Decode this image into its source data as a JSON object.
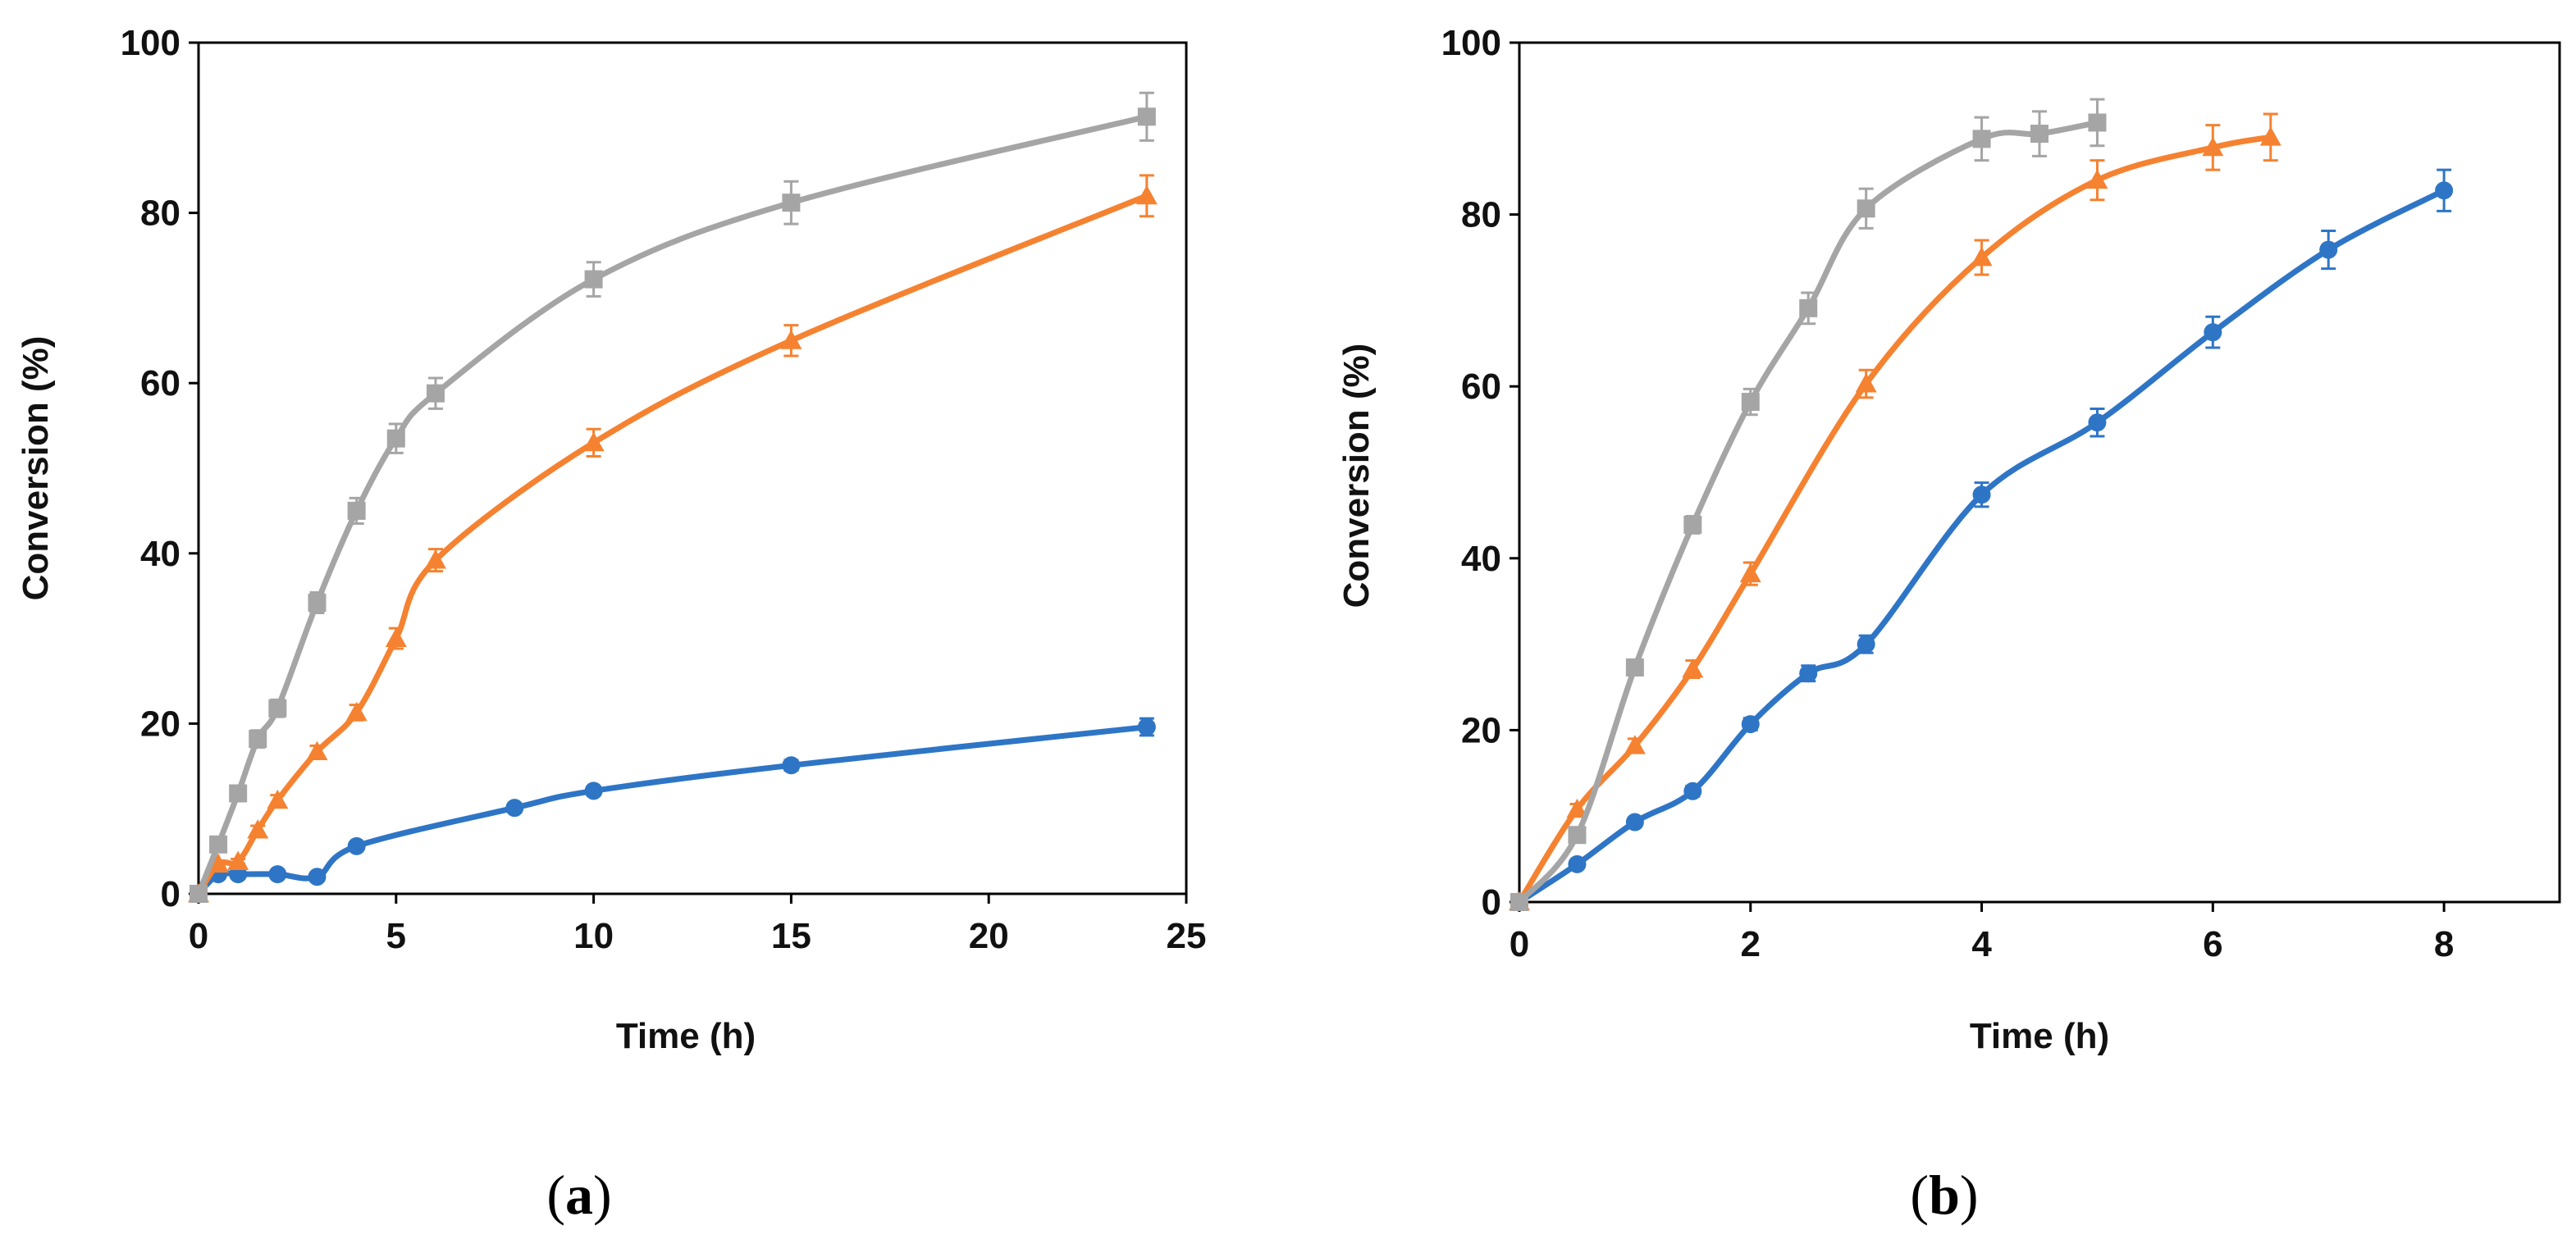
{
  "chart_data": [
    {
      "type": "line",
      "panel": "a",
      "caption": {
        "open": "(",
        "letter": "a",
        "close": ")"
      },
      "xlabel": "Time (h)",
      "ylabel": "Conversion (%)",
      "xlim": [
        0,
        25
      ],
      "ylim": [
        0,
        100
      ],
      "xticks": [
        0,
        5,
        10,
        15,
        20,
        25
      ],
      "yticks": [
        0,
        20,
        40,
        60,
        80,
        100
      ],
      "grid": false,
      "series": [
        {
          "name": "circle-series",
          "color": "#2E75C6",
          "marker": "circle",
          "x": [
            0,
            0.5,
            1,
            2,
            3,
            4,
            8,
            10,
            15,
            24
          ],
          "y": [
            0,
            2.3,
            2.3,
            2.3,
            2.0,
            5.6,
            10.1,
            12.1,
            15.1,
            19.6
          ],
          "err": [
            0.3,
            0.3,
            0.3,
            0.3,
            0.3,
            0.4,
            0.5,
            0.5,
            0.6,
            1.0
          ]
        },
        {
          "name": "triangle-series",
          "color": "#F58231",
          "marker": "triangle",
          "x": [
            0,
            0.5,
            1,
            1.5,
            2,
            3,
            4,
            5,
            6,
            10,
            15,
            24
          ],
          "y": [
            0,
            3.5,
            3.8,
            7.5,
            11.0,
            16.7,
            21.3,
            30.0,
            39.2,
            53.0,
            65.0,
            82.0
          ],
          "err": [
            0.2,
            0.3,
            0.3,
            0.5,
            0.6,
            0.7,
            0.9,
            1.2,
            1.3,
            1.6,
            1.8,
            2.4
          ]
        },
        {
          "name": "square-series",
          "color": "#A5A5A5",
          "marker": "square",
          "x": [
            0,
            0.5,
            1,
            1.5,
            2,
            3,
            4,
            5,
            6,
            10,
            15,
            24
          ],
          "y": [
            0,
            5.8,
            11.8,
            18.2,
            21.8,
            34.2,
            45.0,
            53.5,
            58.8,
            72.2,
            81.2,
            91.3
          ],
          "err": [
            0.3,
            0.6,
            0.8,
            1.0,
            1.0,
            1.2,
            1.5,
            1.7,
            1.8,
            2.0,
            2.5,
            2.8
          ]
        }
      ]
    },
    {
      "type": "line",
      "panel": "b",
      "caption": {
        "open": "(",
        "letter": "b",
        "close": ")"
      },
      "xlabel": "Time (h)",
      "ylabel": "Conversion (%)",
      "xlim": [
        0,
        9
      ],
      "ylim": [
        0,
        100
      ],
      "xticks": [
        0,
        2,
        4,
        6,
        8
      ],
      "yticks": [
        0,
        20,
        40,
        60,
        80,
        100
      ],
      "grid": false,
      "series": [
        {
          "name": "circle-series",
          "color": "#2E75C6",
          "marker": "circle",
          "x": [
            0,
            0.5,
            1,
            1.5,
            2,
            2.5,
            3,
            4,
            5,
            6,
            7,
            8
          ],
          "y": [
            0,
            4.4,
            9.3,
            12.9,
            20.7,
            26.6,
            30.0,
            47.4,
            55.8,
            66.3,
            75.9,
            82.8
          ],
          "err": [
            0.3,
            0.4,
            0.5,
            0.6,
            0.7,
            0.9,
            1.0,
            1.4,
            1.6,
            1.8,
            2.2,
            2.4
          ]
        },
        {
          "name": "triangle-series",
          "color": "#F58231",
          "marker": "triangle",
          "x": [
            0,
            0.5,
            1,
            1.5,
            2,
            3,
            4,
            5,
            6,
            6.5
          ],
          "y": [
            0,
            10.8,
            18.2,
            27.1,
            38.2,
            60.3,
            75.0,
            84.0,
            87.8,
            89.0
          ],
          "err": [
            0.3,
            0.6,
            0.8,
            1.0,
            1.3,
            1.6,
            2.0,
            2.3,
            2.6,
            2.7
          ]
        },
        {
          "name": "square-series",
          "color": "#A5A5A5",
          "marker": "square",
          "x": [
            0,
            0.5,
            1,
            1.5,
            2,
            2.5,
            3,
            4,
            4.5,
            5
          ],
          "y": [
            0,
            7.8,
            27.3,
            43.9,
            58.2,
            69.1,
            80.7,
            88.8,
            89.4,
            90.7
          ],
          "err": [
            0.3,
            0.7,
            0.9,
            1.0,
            1.5,
            1.8,
            2.3,
            2.5,
            2.6,
            2.7
          ]
        }
      ]
    }
  ]
}
